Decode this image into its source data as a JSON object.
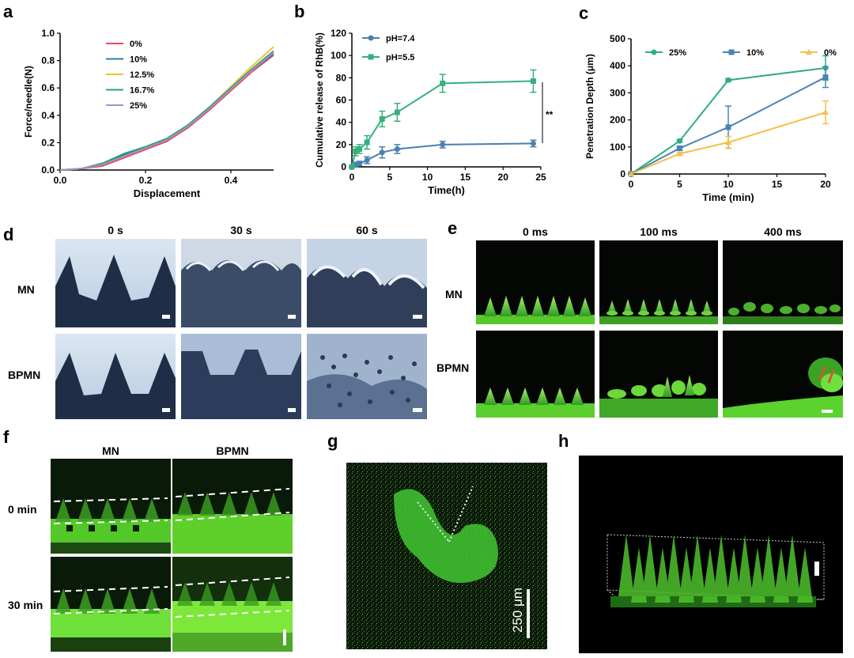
{
  "panel_labels": {
    "a": "a",
    "b": "b",
    "c": "c",
    "d": "d",
    "e": "e",
    "f": "f",
    "g": "g",
    "h": "h"
  },
  "chart_data": [
    {
      "id": "a",
      "type": "line",
      "xlabel": "Displacement",
      "ylabel": "Force/needle(N)",
      "xlim": [
        0,
        0.5
      ],
      "ylim": [
        0,
        1.0
      ],
      "xticks": [
        "0.0",
        "0.2",
        "0.4"
      ],
      "yticks": [
        "0.0",
        "0.2",
        "0.4",
        "0.6",
        "0.8",
        "1.0"
      ],
      "xtick_values": [
        0,
        0.2,
        0.4
      ],
      "ytick_values": [
        0,
        0.2,
        0.4,
        0.6,
        0.8,
        1.0
      ],
      "x": [
        0,
        0.05,
        0.1,
        0.15,
        0.2,
        0.25,
        0.3,
        0.35,
        0.4,
        0.45,
        0.5
      ],
      "series": [
        {
          "name": "0%",
          "color": "#e8495a",
          "values": [
            0,
            0.01,
            0.03,
            0.09,
            0.15,
            0.21,
            0.31,
            0.44,
            0.58,
            0.72,
            0.84
          ]
        },
        {
          "name": "10%",
          "color": "#2f7ca6",
          "values": [
            0,
            0.01,
            0.04,
            0.11,
            0.16,
            0.22,
            0.32,
            0.45,
            0.59,
            0.73,
            0.85
          ]
        },
        {
          "name": "12.5%",
          "color": "#f2c12e",
          "values": [
            0,
            0.01,
            0.04,
            0.1,
            0.16,
            0.23,
            0.33,
            0.46,
            0.61,
            0.76,
            0.9
          ]
        },
        {
          "name": "16.7%",
          "color": "#25a37a",
          "values": [
            0,
            0.01,
            0.05,
            0.12,
            0.17,
            0.23,
            0.33,
            0.46,
            0.6,
            0.74,
            0.87
          ]
        },
        {
          "name": "25%",
          "color": "#a58fc9",
          "values": [
            0,
            0.01,
            0.04,
            0.1,
            0.16,
            0.22,
            0.32,
            0.45,
            0.59,
            0.73,
            0.86
          ]
        }
      ]
    },
    {
      "id": "b",
      "type": "line",
      "xlabel": "Time(h)",
      "ylabel": "Cumulative release of RhB(%)",
      "xlim": [
        0,
        25
      ],
      "ylim": [
        0,
        120
      ],
      "xticks": [
        "0",
        "5",
        "10",
        "15",
        "20",
        "25"
      ],
      "yticks": [
        "0",
        "20",
        "40",
        "60",
        "80",
        "100",
        "120"
      ],
      "xtick_values": [
        0,
        5,
        10,
        15,
        20,
        25
      ],
      "ytick_values": [
        0,
        20,
        40,
        60,
        80,
        100,
        120
      ],
      "annotation": "**",
      "series": [
        {
          "name": "pH=7.4",
          "color": "#4b7fae",
          "marker": "circle",
          "x": [
            0,
            0.5,
            1,
            2,
            4,
            6,
            12,
            24
          ],
          "values": [
            0,
            2,
            3,
            6,
            13,
            16,
            20,
            21
          ],
          "err": [
            0,
            2,
            2,
            3,
            5,
            4,
            3,
            3
          ]
        },
        {
          "name": "pH=5.5",
          "color": "#36b07c",
          "marker": "square",
          "x": [
            0,
            0.5,
            1,
            2,
            4,
            6,
            12,
            24
          ],
          "values": [
            0,
            14,
            16,
            22,
            43,
            49,
            75,
            77
          ],
          "err": [
            0,
            4,
            4,
            6,
            7,
            8,
            8,
            10
          ]
        }
      ]
    },
    {
      "id": "c",
      "type": "line",
      "xlabel": "Time (min)",
      "ylabel": "Penetration Depth (μm)",
      "xlim": [
        0,
        20
      ],
      "ylim": [
        0,
        500
      ],
      "xticks": [
        "0",
        "5",
        "10",
        "15",
        "20"
      ],
      "yticks": [
        "0",
        "100",
        "200",
        "300",
        "400",
        "500"
      ],
      "xtick_values": [
        0,
        5,
        10,
        15,
        20
      ],
      "ytick_values": [
        0,
        100,
        200,
        300,
        400,
        500
      ],
      "series": [
        {
          "name": "25%",
          "color": "#2fae7f",
          "marker": "circle",
          "x": [
            0,
            5,
            10,
            20
          ],
          "values": [
            0,
            122,
            347,
            392
          ],
          "err": [
            0,
            5,
            5,
            45
          ]
        },
        {
          "name": "10%",
          "color": "#4a84b5",
          "marker": "square",
          "x": [
            0,
            5,
            10,
            20
          ],
          "values": [
            0,
            95,
            173,
            358
          ],
          "err": [
            0,
            8,
            78,
            38
          ]
        },
        {
          "name": "0%",
          "color": "#f3c04a",
          "marker": "triangle",
          "x": [
            0,
            5,
            10,
            20
          ],
          "values": [
            0,
            75,
            117,
            228
          ],
          "err": [
            0,
            5,
            22,
            42
          ]
        }
      ]
    }
  ],
  "panel_d": {
    "col_headers": [
      "0 s",
      "30 s",
      "60 s"
    ],
    "row_labels": [
      "MN",
      "BPMN"
    ]
  },
  "panel_e": {
    "col_headers": [
      "0 ms",
      "100 ms",
      "400 ms"
    ],
    "row_labels": [
      "MN",
      "BPMN"
    ]
  },
  "panel_f": {
    "col_headers": [
      "MN",
      "BPMN"
    ],
    "row_labels": [
      "0 min",
      "30 min"
    ]
  },
  "panel_g": {
    "scale_label": "250 μm"
  },
  "colors": {
    "micro_bg": "#050805",
    "green_bright": "#7ee83a",
    "green_mid": "#3fbf2a",
    "bright_bg": "#c9d9ea",
    "dark_blue": "#1c2a43"
  }
}
